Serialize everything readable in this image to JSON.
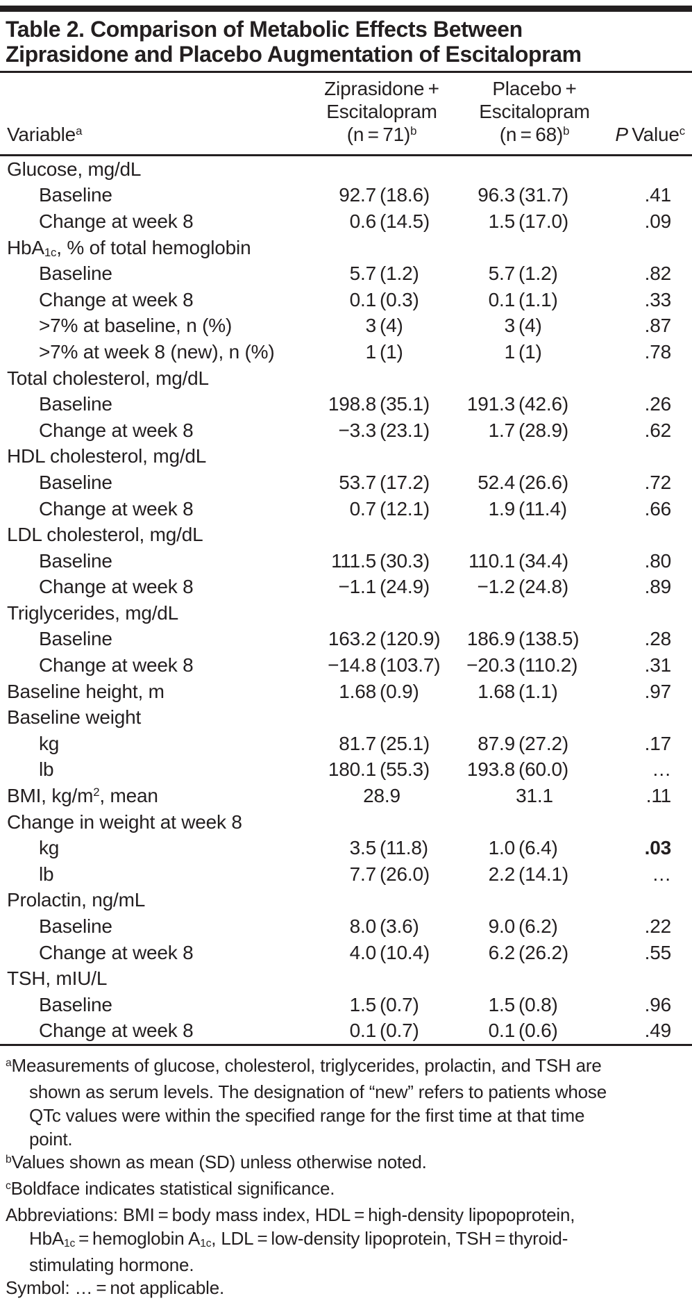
{
  "table": {
    "title_lines": [
      "Table 2. Comparison of Metabolic Effects Between",
      "Ziprasidone and Placebo Augmentation of Escitalopram"
    ],
    "header": {
      "variable": "Variable<sup>a</sup>",
      "col1": {
        "line1": "Ziprasidone +",
        "line2": "Escitalopram",
        "line3": "(n = 71)<sup>b</sup>"
      },
      "col2": {
        "line1": "Placebo +",
        "line2": "Escitalopram",
        "line3": "(n = 68)<sup>b</sup>"
      },
      "p": "<i>P</i> Value<sup>c</sup>"
    },
    "rows": [
      {
        "label": "Glucose, mg/dL",
        "section": true
      },
      {
        "label": "Baseline",
        "indent": 1,
        "v1": [
          "92.7",
          "(18.6)"
        ],
        "v2": [
          "96.3",
          "(31.7)"
        ],
        "p": ".41"
      },
      {
        "label": "Change at week 8",
        "indent": 1,
        "v1": [
          "0.6",
          "(14.5)"
        ],
        "v2": [
          "1.5",
          "(17.0)"
        ],
        "p": ".09"
      },
      {
        "label": "HbA<sub>1c</sub>, % of total hemoglobin",
        "section": true
      },
      {
        "label": "Baseline",
        "indent": 1,
        "v1": [
          "5.7",
          "(1.2)"
        ],
        "v2": [
          "5.7",
          "(1.2)"
        ],
        "p": ".82"
      },
      {
        "label": "Change at week 8",
        "indent": 1,
        "v1": [
          "0.1",
          "(0.3)"
        ],
        "v2": [
          "0.1",
          "(1.1)"
        ],
        "p": ".33"
      },
      {
        "label": ">7% at baseline, n (%)",
        "indent": 1,
        "v1": [
          "3",
          "(4)"
        ],
        "v2": [
          "3",
          "(4)"
        ],
        "p": ".87"
      },
      {
        "label": ">7% at week 8 (new), n (%)",
        "indent": 1,
        "v1": [
          "1",
          "(1)"
        ],
        "v2": [
          "1",
          "(1)"
        ],
        "p": ".78"
      },
      {
        "label": "Total cholesterol, mg/dL",
        "section": true
      },
      {
        "label": "Baseline",
        "indent": 1,
        "v1": [
          "198.8",
          "(35.1)"
        ],
        "v2": [
          "191.3",
          "(42.6)"
        ],
        "p": ".26"
      },
      {
        "label": "Change at week 8",
        "indent": 1,
        "v1": [
          "−3.3",
          "(23.1)"
        ],
        "v2": [
          "1.7",
          "(28.9)"
        ],
        "p": ".62"
      },
      {
        "label": "HDL cholesterol, mg/dL",
        "section": true
      },
      {
        "label": "Baseline",
        "indent": 1,
        "v1": [
          "53.7",
          "(17.2)"
        ],
        "v2": [
          "52.4",
          "(26.6)"
        ],
        "p": ".72"
      },
      {
        "label": "Change at week 8",
        "indent": 1,
        "v1": [
          "0.7",
          "(12.1)"
        ],
        "v2": [
          "1.9",
          "(11.4)"
        ],
        "p": ".66"
      },
      {
        "label": "LDL cholesterol, mg/dL",
        "section": true
      },
      {
        "label": "Baseline",
        "indent": 1,
        "v1": [
          "111.5",
          "(30.3)"
        ],
        "v2": [
          "110.1",
          "(34.4)"
        ],
        "p": ".80"
      },
      {
        "label": "Change at week 8",
        "indent": 1,
        "v1": [
          "−1.1",
          "(24.9)"
        ],
        "v2": [
          "−1.2",
          "(24.8)"
        ],
        "p": ".89"
      },
      {
        "label": "Triglycerides, mg/dL",
        "section": true
      },
      {
        "label": "Baseline",
        "indent": 1,
        "v1": [
          "163.2",
          "(120.9)"
        ],
        "v2": [
          "186.9",
          "(138.5)"
        ],
        "p": ".28"
      },
      {
        "label": "Change at week 8",
        "indent": 1,
        "v1": [
          "−14.8",
          "(103.7)"
        ],
        "v2": [
          "−20.3",
          "(110.2)"
        ],
        "p": ".31"
      },
      {
        "label": "Baseline height, m",
        "indent": 0,
        "v1": [
          "1.68",
          "(0.9)"
        ],
        "v2": [
          "1.68",
          "(1.1)"
        ],
        "p": ".97"
      },
      {
        "label": "Baseline weight",
        "section": true
      },
      {
        "label": "kg",
        "indent": 1,
        "v1": [
          "81.7",
          "(25.1)"
        ],
        "v2": [
          "87.9",
          "(27.2)"
        ],
        "p": ".17"
      },
      {
        "label": "lb",
        "indent": 1,
        "v1": [
          "180.1",
          "(55.3)"
        ],
        "v2": [
          "193.8",
          "(60.0)"
        ],
        "p": "…"
      },
      {
        "label": "BMI, kg/m<sup>2</sup>, mean",
        "indent": 0,
        "v1": [
          "28.9",
          ""
        ],
        "v2": [
          "31.1",
          ""
        ],
        "p": ".11"
      },
      {
        "label": "Change in weight at week 8",
        "section": true
      },
      {
        "label": "kg",
        "indent": 1,
        "v1": [
          "3.5",
          "(11.8)"
        ],
        "v2": [
          "1.0",
          "(6.4)"
        ],
        "p": ".03",
        "pBold": true
      },
      {
        "label": "lb",
        "indent": 1,
        "v1": [
          "7.7",
          "(26.0)"
        ],
        "v2": [
          "2.2",
          "(14.1)"
        ],
        "p": "…"
      },
      {
        "label": "Prolactin, ng/mL",
        "section": true
      },
      {
        "label": "Baseline",
        "indent": 1,
        "v1": [
          "8.0",
          "(3.6)"
        ],
        "v2": [
          "9.0",
          "(6.2)"
        ],
        "p": ".22"
      },
      {
        "label": "Change at week 8",
        "indent": 1,
        "v1": [
          "4.0",
          "(10.4)"
        ],
        "v2": [
          "6.2",
          "(26.2)"
        ],
        "p": ".55"
      },
      {
        "label": "TSH, mIU/L",
        "section": true
      },
      {
        "label": "Baseline",
        "indent": 1,
        "v1": [
          "1.5",
          "(0.7)"
        ],
        "v2": [
          "1.5",
          "(0.8)"
        ],
        "p": ".96"
      },
      {
        "label": "Change at week 8",
        "indent": 1,
        "v1": [
          "0.1",
          "(0.7)"
        ],
        "v2": [
          "0.1",
          "(0.6)"
        ],
        "p": ".49"
      }
    ]
  },
  "footnotes": [
    {
      "sup": "a",
      "html": "Measurements of glucose, cholesterol, triglycerides, prolactin, and TSH are"
    },
    {
      "indent": true,
      "html": "shown as serum levels. The designation of “new” refers to patients whose"
    },
    {
      "indent": true,
      "html": "QTc values were within the specified range for the first time at that time"
    },
    {
      "indent": true,
      "html": "point."
    },
    {
      "sup": "b",
      "html": "Values shown as mean (SD) unless otherwise noted."
    },
    {
      "sup": "c",
      "html": "Boldface indicates statistical significance."
    },
    {
      "html": "Abbreviations: BMI = body mass index, HDL = high-density lipopoprotein,"
    },
    {
      "indent": true,
      "html": "HbA<sub>1c</sub> = hemoglobin A<sub>1c</sub>, LDL = low-density lipoprotein, TSH = thyroid-"
    },
    {
      "indent": true,
      "html": "stimulating hormone."
    },
    {
      "html": "Symbol: … = not applicable."
    }
  ]
}
